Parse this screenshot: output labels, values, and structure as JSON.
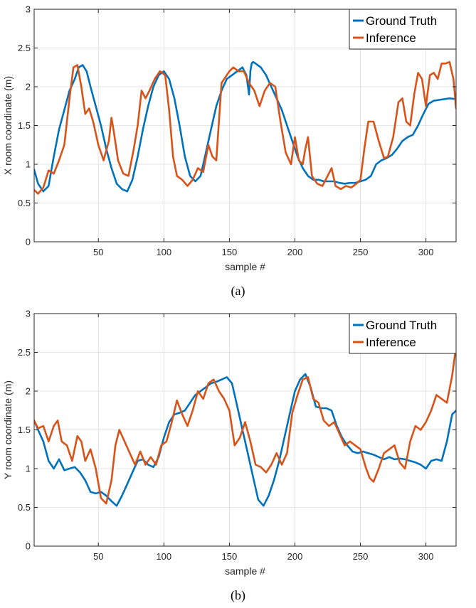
{
  "chart_data": [
    {
      "type": "line",
      "caption": "(a)",
      "xlabel": "sample #",
      "ylabel": "X room coordinate (m)",
      "xlim": [
        1,
        323
      ],
      "ylim": [
        0,
        3
      ],
      "xticks": [
        50,
        100,
        150,
        200,
        250,
        300
      ],
      "yticks": [
        0,
        0.5,
        1,
        1.5,
        2,
        2.5,
        3
      ],
      "ytick_labels": [
        "0",
        "0.5",
        "1",
        "1.5",
        "2",
        "2.5",
        "3"
      ],
      "grid": true,
      "legend_position": "top-right",
      "series": [
        {
          "name": "Ground Truth",
          "color": "#0072BD",
          "x": [
            1,
            4,
            8,
            12,
            16,
            20,
            24,
            28,
            32,
            35,
            38,
            41,
            44,
            48,
            52,
            56,
            60,
            64,
            68,
            72,
            76,
            80,
            84,
            88,
            92,
            96,
            100,
            104,
            108,
            112,
            116,
            120,
            124,
            128,
            132,
            136,
            140,
            144,
            148,
            152,
            156,
            160,
            163,
            165,
            166,
            167,
            168,
            170,
            174,
            178,
            182,
            186,
            190,
            194,
            198,
            202,
            206,
            210,
            214,
            218,
            222,
            226,
            230,
            234,
            238,
            242,
            246,
            250,
            254,
            258,
            262,
            266,
            270,
            274,
            278,
            282,
            286,
            290,
            294,
            298,
            302,
            306,
            310,
            314,
            318,
            323
          ],
          "y": [
            0.93,
            0.75,
            0.65,
            0.72,
            1.1,
            1.45,
            1.7,
            1.95,
            2.1,
            2.25,
            2.28,
            2.2,
            2.0,
            1.75,
            1.5,
            1.2,
            0.95,
            0.75,
            0.68,
            0.65,
            0.8,
            1.1,
            1.45,
            1.75,
            2.0,
            2.15,
            2.2,
            2.1,
            1.85,
            1.5,
            1.1,
            0.85,
            0.78,
            0.85,
            1.15,
            1.45,
            1.75,
            1.95,
            2.1,
            2.15,
            2.2,
            2.25,
            2.15,
            1.9,
            2.2,
            2.3,
            2.32,
            2.3,
            2.25,
            2.15,
            2.0,
            1.85,
            1.7,
            1.5,
            1.3,
            1.1,
            0.95,
            0.85,
            0.8,
            0.8,
            0.78,
            0.78,
            0.78,
            0.76,
            0.75,
            0.76,
            0.76,
            0.78,
            0.8,
            0.85,
            1.0,
            1.05,
            1.08,
            1.12,
            1.2,
            1.3,
            1.35,
            1.38,
            1.5,
            1.65,
            1.78,
            1.82,
            1.83,
            1.84,
            1.85,
            1.84
          ]
        },
        {
          "name": "Inference",
          "color": "#D95319",
          "x": [
            1,
            4,
            8,
            12,
            16,
            20,
            24,
            28,
            31,
            34,
            37,
            40,
            43,
            46,
            50,
            54,
            58,
            60,
            62,
            65,
            69,
            73,
            77,
            80,
            83,
            86,
            89,
            93,
            97,
            101,
            104,
            107,
            110,
            114,
            118,
            122,
            126,
            130,
            134,
            137,
            140,
            144,
            148,
            150,
            153,
            157,
            161,
            165,
            169,
            173,
            177,
            181,
            185,
            189,
            193,
            197,
            200,
            203,
            206,
            208,
            210,
            213,
            217,
            221,
            225,
            228,
            231,
            235,
            239,
            243,
            247,
            250,
            253,
            256,
            260,
            264,
            268,
            271,
            275,
            279,
            282,
            285,
            288,
            291,
            294,
            297,
            300,
            303,
            306,
            309,
            312,
            315,
            318,
            321,
            323
          ],
          "y": [
            0.67,
            0.62,
            0.7,
            0.92,
            0.88,
            1.05,
            1.25,
            1.85,
            2.25,
            2.28,
            2.0,
            1.65,
            1.72,
            1.55,
            1.25,
            1.05,
            1.3,
            1.6,
            1.4,
            1.05,
            0.88,
            0.85,
            1.2,
            1.5,
            1.95,
            1.85,
            1.95,
            2.1,
            2.2,
            2.15,
            1.7,
            1.1,
            0.85,
            0.8,
            0.72,
            0.8,
            0.95,
            0.9,
            1.25,
            1.1,
            1.05,
            2.05,
            2.15,
            2.2,
            2.25,
            2.2,
            2.2,
            2.05,
            1.95,
            1.75,
            1.95,
            2.05,
            2.0,
            1.55,
            1.15,
            1.0,
            1.35,
            1.05,
            1.0,
            1.2,
            1.35,
            0.85,
            0.75,
            0.72,
            0.85,
            0.95,
            0.72,
            0.68,
            0.72,
            0.7,
            0.75,
            0.8,
            1.2,
            1.55,
            1.55,
            1.3,
            1.08,
            1.1,
            1.35,
            1.8,
            1.85,
            1.55,
            1.5,
            1.9,
            2.18,
            2.1,
            1.75,
            2.15,
            2.18,
            2.1,
            2.3,
            2.3,
            2.32,
            2.1,
            1.72
          ]
        }
      ]
    },
    {
      "type": "line",
      "caption": "(b)",
      "xlabel": "sample #",
      "ylabel": "Y room coordinate (m)",
      "xlim": [
        1,
        323
      ],
      "ylim": [
        0,
        3
      ],
      "xticks": [
        50,
        100,
        150,
        200,
        250,
        300
      ],
      "yticks": [
        0,
        0.5,
        1,
        1.5,
        2,
        2.5,
        3
      ],
      "ytick_labels": [
        "0",
        "0.5",
        "1",
        "1.5",
        "2",
        "2.5",
        "3"
      ],
      "grid": true,
      "legend_position": "top-right",
      "series": [
        {
          "name": "Ground Truth",
          "color": "#0072BD",
          "x": [
            1,
            4,
            8,
            12,
            16,
            20,
            24,
            28,
            32,
            36,
            40,
            44,
            48,
            52,
            56,
            60,
            64,
            68,
            72,
            76,
            80,
            84,
            88,
            92,
            96,
            100,
            104,
            108,
            112,
            116,
            120,
            124,
            128,
            132,
            136,
            140,
            144,
            148,
            152,
            156,
            160,
            164,
            168,
            172,
            176,
            180,
            184,
            188,
            192,
            196,
            200,
            204,
            208,
            212,
            216,
            220,
            224,
            228,
            232,
            236,
            240,
            244,
            248,
            252,
            256,
            260,
            264,
            268,
            272,
            276,
            280,
            284,
            288,
            292,
            296,
            300,
            304,
            308,
            312,
            316,
            320,
            323
          ],
          "y": [
            1.62,
            1.5,
            1.35,
            1.1,
            1.0,
            1.12,
            0.98,
            1.0,
            1.02,
            0.95,
            0.85,
            0.7,
            0.68,
            0.7,
            0.65,
            0.58,
            0.52,
            0.65,
            0.8,
            0.95,
            1.1,
            1.12,
            1.05,
            1.02,
            1.15,
            1.4,
            1.6,
            1.7,
            1.72,
            1.75,
            1.85,
            1.95,
            2.0,
            2.05,
            2.1,
            2.12,
            2.15,
            2.18,
            2.1,
            1.8,
            1.5,
            1.2,
            0.9,
            0.6,
            0.52,
            0.65,
            0.85,
            1.1,
            1.4,
            1.7,
            2.0,
            2.15,
            2.22,
            2.05,
            1.8,
            1.78,
            1.78,
            1.75,
            1.55,
            1.4,
            1.3,
            1.22,
            1.2,
            1.22,
            1.2,
            1.18,
            1.15,
            1.12,
            1.15,
            1.12,
            1.13,
            1.12,
            1.1,
            1.08,
            1.05,
            1.0,
            1.1,
            1.12,
            1.1,
            1.35,
            1.7,
            1.75
          ]
        },
        {
          "name": "Inference",
          "color": "#D95319",
          "x": [
            1,
            4,
            8,
            12,
            16,
            19,
            22,
            26,
            30,
            34,
            37,
            40,
            44,
            48,
            52,
            56,
            60,
            63,
            66,
            70,
            74,
            78,
            82,
            86,
            90,
            94,
            98,
            102,
            106,
            110,
            114,
            118,
            122,
            126,
            130,
            134,
            138,
            142,
            146,
            150,
            154,
            158,
            162,
            166,
            170,
            174,
            178,
            182,
            186,
            190,
            194,
            198,
            202,
            206,
            210,
            214,
            218,
            222,
            226,
            230,
            234,
            238,
            242,
            246,
            250,
            254,
            257,
            260,
            264,
            268,
            272,
            276,
            280,
            284,
            288,
            292,
            296,
            300,
            304,
            308,
            312,
            316,
            320,
            323
          ],
          "y": [
            1.62,
            1.52,
            1.55,
            1.35,
            1.55,
            1.62,
            1.35,
            1.3,
            1.1,
            1.42,
            1.35,
            1.1,
            1.25,
            1.0,
            0.62,
            0.55,
            0.85,
            1.3,
            1.5,
            1.35,
            1.2,
            1.05,
            1.22,
            1.05,
            1.15,
            1.05,
            1.3,
            1.35,
            1.6,
            1.88,
            1.7,
            1.55,
            1.75,
            2.0,
            1.9,
            2.1,
            2.15,
            2.0,
            1.9,
            1.75,
            1.3,
            1.4,
            1.6,
            1.35,
            1.05,
            1.02,
            0.95,
            1.05,
            1.2,
            1.05,
            1.2,
            1.72,
            1.95,
            2.15,
            2.18,
            1.9,
            1.85,
            1.62,
            1.55,
            1.6,
            1.45,
            1.3,
            1.35,
            1.3,
            1.25,
            1.02,
            0.88,
            0.83,
            1.0,
            1.2,
            1.25,
            1.3,
            1.08,
            1.0,
            1.35,
            1.55,
            1.5,
            1.6,
            1.75,
            1.95,
            1.9,
            1.85,
            2.2,
            2.58
          ]
        }
      ]
    }
  ]
}
